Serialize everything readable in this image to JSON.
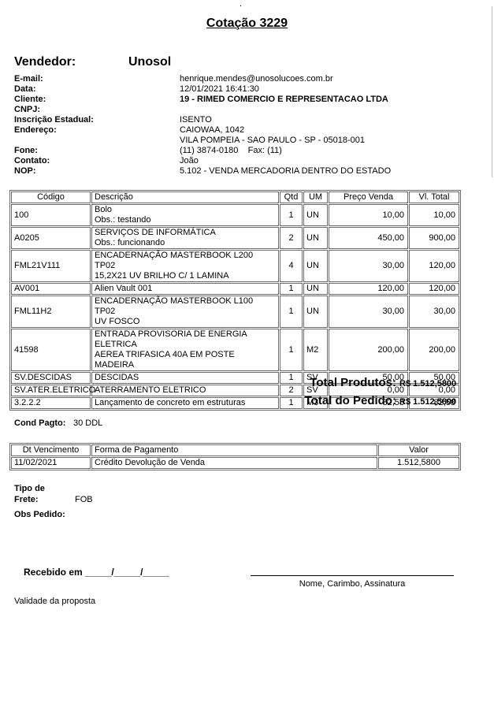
{
  "page": {
    "stray_dot": ".",
    "title": "Cotação 3229"
  },
  "vendor": {
    "label": "Vendedor:",
    "name": "Unosol"
  },
  "info": {
    "rows": [
      {
        "label": "E-mail:",
        "value": "henrique.mendes@unosolucoes.com.br",
        "bold_value": false
      },
      {
        "label": "Data:",
        "value": "12/01/2021 16:41:30",
        "bold_value": false
      },
      {
        "label": "Cliente:",
        "value": "19 - RIMED COMERCIO E REPRESENTACAO LTDA",
        "bold_value": true
      },
      {
        "label": "CNPJ:",
        "value": "",
        "bold_value": false
      },
      {
        "label": "Inscrição Estadual:",
        "value": "ISENTO",
        "bold_value": false
      },
      {
        "label": "Endereço:",
        "value": "CAIOWAA, 1042",
        "bold_value": false
      },
      {
        "label": "",
        "value": "VILA POMPEIA - SAO PAULO - SP - 05018-001",
        "bold_value": false
      },
      {
        "label": "Fone:",
        "value": "(11) 3874-0180    Fax: (11)",
        "bold_value": false
      },
      {
        "label": "Contato:",
        "value": "João",
        "bold_value": false
      },
      {
        "label": "NOP:",
        "value": "5.102 - VENDA MERCADORIA DENTRO DO ESTADO",
        "bold_value": false
      }
    ]
  },
  "items_table": {
    "headers": {
      "codigo": "Código",
      "descricao": "Descrição",
      "qtd": "Qtd",
      "um": "UM",
      "preco": "Preço Venda",
      "total": "Vl. Total"
    },
    "rows": [
      {
        "codigo": "100",
        "descricao": [
          "Bolo",
          "Obs.: testando"
        ],
        "qtd": "1",
        "um": "UN",
        "preco": "10,00",
        "total": "10,00"
      },
      {
        "codigo": "A0205",
        "descricao": [
          "SERVIÇOS DE INFORMÁTICA",
          "Obs.: funcionando"
        ],
        "qtd": "2",
        "um": "UN",
        "preco": "450,00",
        "total": "900,00"
      },
      {
        "codigo": "FML21V111",
        "descricao": [
          "ENCADERNAÇÃO MASTERBOOK L200 TP02",
          "15,2X21 UV BRILHO C/ 1 LAMINA"
        ],
        "qtd": "4",
        "um": "UN",
        "preco": "30,00",
        "total": "120,00"
      },
      {
        "codigo": "AV001",
        "descricao": [
          "Alien Vault 001"
        ],
        "qtd": "1",
        "um": "UN",
        "preco": "120,00",
        "total": "120,00"
      },
      {
        "codigo": "FML11H2",
        "descricao": [
          "ENCADERNAÇÃO MASTERBOOK L100 TP02",
          "UV FOSCO"
        ],
        "qtd": "1",
        "um": "UN",
        "preco": "30,00",
        "total": "30,00"
      },
      {
        "codigo": "41598",
        "descricao": [
          "ENTRADA PROVISORIA DE ENERGIA ELETRICA",
          "AEREA TRIFASICA 40A EM POSTE MADEIRA"
        ],
        "qtd": "1",
        "um": "M2",
        "preco": "200,00",
        "total": "200,00"
      },
      {
        "codigo": "SV.DESCIDAS",
        "descricao": [
          "DESCIDAS"
        ],
        "qtd": "1",
        "um": "SV",
        "preco": "50,00",
        "total": "50,00"
      },
      {
        "codigo": "SV.ATER.ELETRICO",
        "descricao": [
          "ATERRAMENTO ELETRICO"
        ],
        "qtd": "2",
        "um": "SV",
        "preco": "0,00",
        "total": "0,00"
      },
      {
        "codigo": "3.2.2.2",
        "descricao": [
          "Lançamento de concreto em estruturas"
        ],
        "qtd": "1",
        "um": "M3",
        "preco": "82,58",
        "total": "82,58"
      }
    ]
  },
  "totals": {
    "produtos_label": "Total Produtos:",
    "produtos_value": "R$ 1.512,5800",
    "pedido_label": "Total do Pedido:",
    "pedido_value": "R$ 1.512,5800"
  },
  "payment": {
    "cond_label": "Cond Pagto:",
    "cond_value": "30 DDL",
    "headers": {
      "dt": "Dt Vencimento",
      "forma": "Forma de Pagamento",
      "valor": "Valor"
    },
    "rows": [
      {
        "dt": "11/02/2021",
        "forma": "Crédito Devolução de Venda",
        "valor": "1.512,5800"
      }
    ]
  },
  "shipping": {
    "label_line1": "Tipo de",
    "label_line2": "Frete:",
    "value": "FOB"
  },
  "obs": {
    "label": "Obs Pedido:"
  },
  "signature": {
    "received_label": "Recebido em _____/_____/_____",
    "caption": "Nome, Carimbo, Assinatura"
  },
  "validity": {
    "label": "Validade da proposta"
  }
}
